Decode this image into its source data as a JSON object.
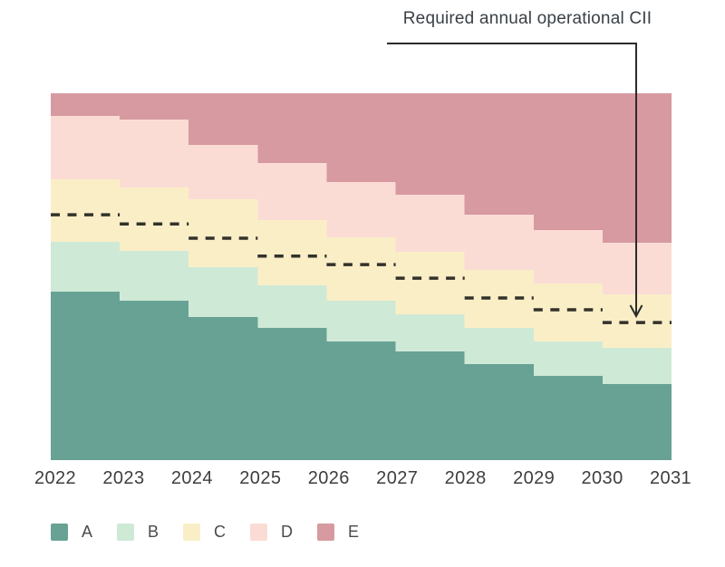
{
  "annotation": {
    "label": "Required annual operational CII",
    "color": "#3a4147"
  },
  "axis": {
    "label_color": "#3e3e3e"
  },
  "legend": {
    "label_color": "#4a4a4a",
    "position": "bottom-left"
  },
  "chart_data": {
    "type": "area",
    "subtype": "stepped-stacked-rating-bands",
    "title": "",
    "xlabel": "",
    "ylabel": "",
    "x_axis_labels": [
      "2022",
      "2023",
      "2024",
      "2025",
      "2026",
      "2027",
      "2028",
      "2029",
      "2030",
      "2031"
    ],
    "step_years": [
      2022,
      2023,
      2024,
      2025,
      2026,
      2027,
      2028,
      2029,
      2030
    ],
    "ylim": [
      0,
      100
    ],
    "grid": false,
    "bands": [
      {
        "label": "A",
        "color": "#68a295",
        "top_boundary_pct": [
          45.9,
          43.5,
          39.0,
          36.0,
          32.3,
          29.6,
          26.2,
          23.0,
          20.7
        ]
      },
      {
        "label": "B",
        "color": "#cfe9d7",
        "top_boundary_pct": [
          59.5,
          57.0,
          52.6,
          47.7,
          43.5,
          39.8,
          36.0,
          32.3,
          30.6
        ]
      },
      {
        "label": "C",
        "color": "#faeec7",
        "top_boundary_pct": [
          76.5,
          74.3,
          71.1,
          65.4,
          60.7,
          56.8,
          51.9,
          48.1,
          45.2
        ]
      },
      {
        "label": "D",
        "color": "#fbdcd5",
        "top_boundary_pct": [
          93.8,
          92.8,
          85.9,
          81.0,
          75.8,
          72.3,
          66.9,
          62.7,
          59.3
        ]
      },
      {
        "label": "E",
        "color": "#d69aa0",
        "top_boundary_pct": [
          100,
          100,
          100,
          100,
          100,
          100,
          100,
          100,
          100
        ]
      }
    ],
    "required_cii_line": {
      "name": "Required annual operational CII",
      "values_pct": [
        66.9,
        64.4,
        60.5,
        55.6,
        53.3,
        49.6,
        44.2,
        41.0,
        37.5
      ],
      "color": "#33312a",
      "dash": "10 8.5",
      "width": 3.5
    },
    "annotation_arrow_color": "#2b2b2b"
  }
}
